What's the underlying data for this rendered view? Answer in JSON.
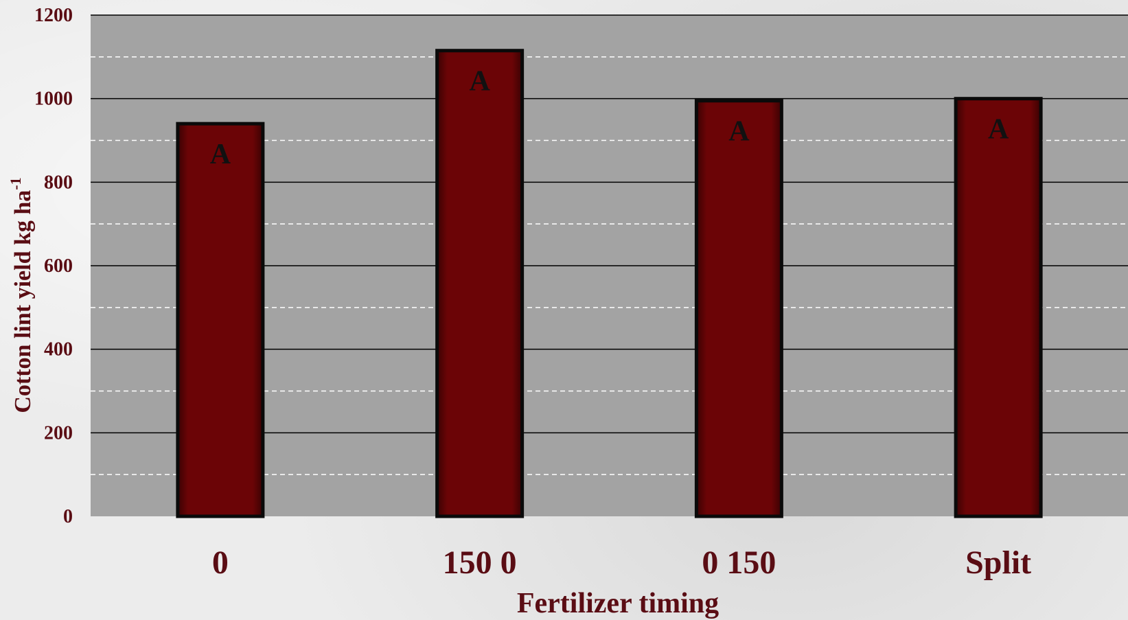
{
  "chart_data": {
    "type": "bar",
    "categories": [
      "0",
      "150 0",
      "0 150",
      "Split"
    ],
    "values": [
      940,
      1115,
      995,
      1000
    ],
    "bar_labels": [
      "A",
      "A",
      "A",
      "A"
    ],
    "xlabel": "Fertilizer timing",
    "ylabel": {
      "base": "Cotton lint yield kg ha",
      "superscript": "-1"
    },
    "ylim": [
      0,
      1200
    ],
    "yticks": [
      "0",
      "200",
      "400",
      "600",
      "800",
      "1000",
      "1200"
    ],
    "major_step": 200,
    "minor_step": 100,
    "grid": true,
    "colors": {
      "bar_fill": "#6b0406",
      "bar_edge": "#0a0a0a",
      "plot_bg": "#a3a3a3",
      "major_grid": "#000000",
      "minor_grid": "#ffffff",
      "label_text": "#5a0d14"
    }
  }
}
